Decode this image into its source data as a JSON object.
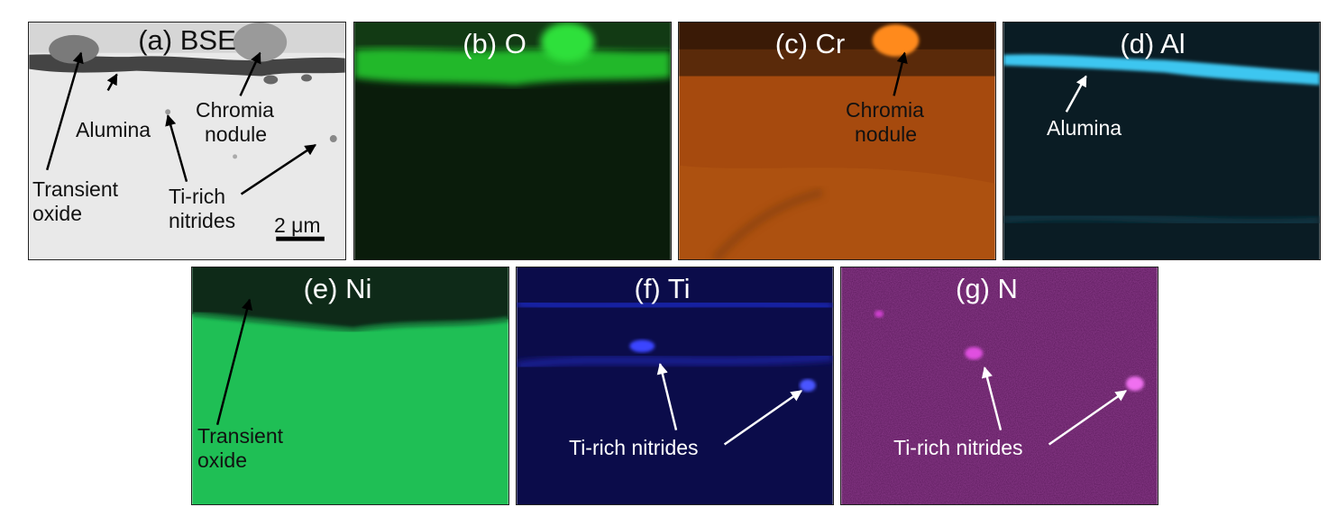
{
  "figure": {
    "panels": [
      {
        "id": "a",
        "label": "(a) BSE",
        "annotations": {
          "alumina": "Alumina",
          "chromia_line1": "Chromia",
          "chromia_line2": "nodule",
          "transient_line1": "Transient",
          "transient_line2": "oxide",
          "tirich_line1": "Ti-rich",
          "tirich_line2": "nitrides",
          "scalebar": "2 μm"
        }
      },
      {
        "id": "b",
        "label": "(b) O",
        "map_color": "#1fd02a"
      },
      {
        "id": "c",
        "label": "(c) Cr",
        "map_color": "#c35a10",
        "annotations": {
          "chromia_line1": "Chromia",
          "chromia_line2": "nodule"
        }
      },
      {
        "id": "d",
        "label": "(d) Al",
        "map_color": "#3cc6f0",
        "annotations": {
          "alumina": "Alumina"
        }
      },
      {
        "id": "e",
        "label": "(e) Ni",
        "map_color": "#1fbf55",
        "annotations": {
          "transient_line1": "Transient",
          "transient_line2": "oxide"
        }
      },
      {
        "id": "f",
        "label": "(f) Ti",
        "map_color": "#1a22c8",
        "annotations": {
          "tirich": "Ti-rich nitrides"
        }
      },
      {
        "id": "g",
        "label": "(g) N",
        "map_color": "#c030c0",
        "annotations": {
          "tirich": "Ti-rich nitrides"
        }
      }
    ]
  }
}
